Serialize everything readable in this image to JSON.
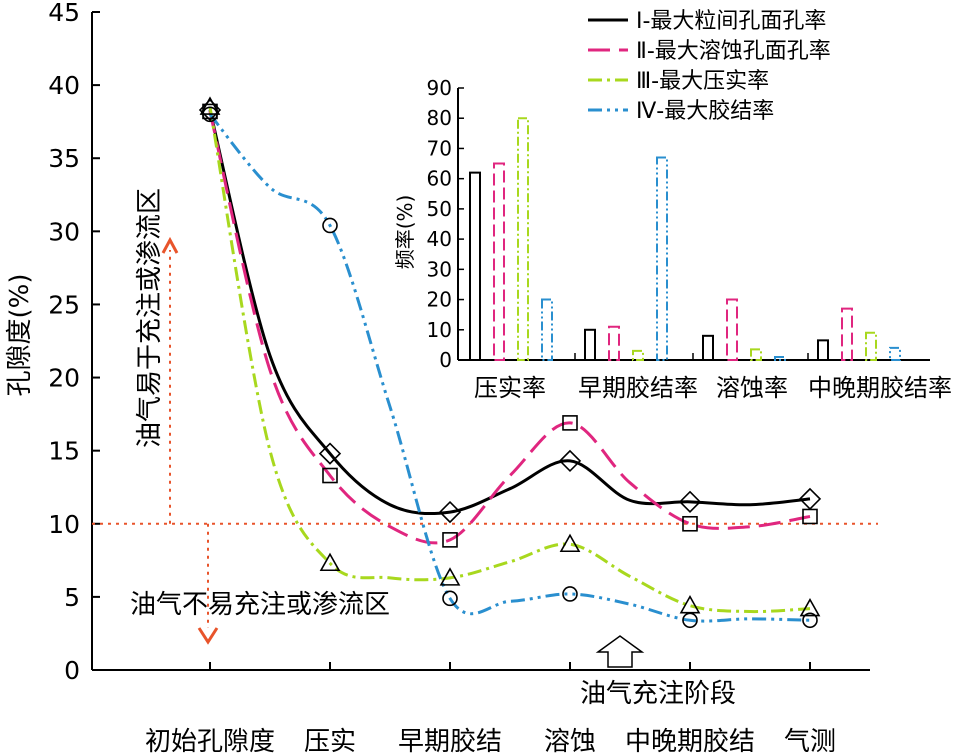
{
  "chart_data": [
    {
      "type": "line",
      "ylabel": "孔隙度(%)",
      "ylim": [
        0,
        45
      ],
      "yticks": [
        0,
        5,
        10,
        15,
        20,
        25,
        30,
        35,
        40,
        45
      ],
      "categories": [
        "初始孔隙度",
        "压实",
        "早期胶结",
        "溶蚀",
        "中晚期胶结",
        "气测"
      ],
      "series": [
        {
          "name": "Ⅰ-最大粒间孔面孔率",
          "color": "#000000",
          "dash": "",
          "marker": "diamond",
          "values": [
            38.3,
            14.8,
            10.8,
            14.3,
            11.5,
            11.7
          ],
          "mid": [
            21.5,
            11.3,
            12.4,
            11.6,
            11.3
          ]
        },
        {
          "name": "Ⅱ-最大溶蚀孔面孔率",
          "color": "#e0267f",
          "dash": "22,9",
          "marker": "square",
          "values": [
            38.2,
            13.3,
            8.9,
            16.9,
            10.0,
            10.5
          ],
          "mid": [
            20.5,
            9.8,
            13.3,
            12.8,
            9.8
          ]
        },
        {
          "name": "Ⅲ-最大压实率",
          "color": "#a8d81e",
          "dash": "14,5,3,5",
          "marker": "triangle",
          "values": [
            38.5,
            7.3,
            6.3,
            8.6,
            4.4,
            4.2
          ],
          "mid": [
            15.0,
            6.3,
            7.4,
            6.4,
            4.0
          ]
        },
        {
          "name": "Ⅳ-最大胶结率",
          "color": "#2a8fcf",
          "dash": "14,5,3,5,3,5",
          "marker": "circle",
          "values": [
            38.0,
            30.4,
            4.9,
            5.2,
            3.4,
            3.4
          ],
          "mid": [
            33.0,
            18.0,
            4.7,
            4.5,
            3.5
          ]
        }
      ],
      "threshold": {
        "value": 10,
        "color": "#e8542b"
      },
      "annotations": {
        "upper": "油气易于充注或渗流区",
        "lower": "油气不易充注或渗流区",
        "stage": "油气充注阶段"
      }
    },
    {
      "type": "bar",
      "ylabel": "频率(%)",
      "ylim": [
        0,
        90
      ],
      "yticks": [
        0,
        10,
        20,
        30,
        40,
        50,
        60,
        70,
        80,
        90
      ],
      "categories": [
        "压实率",
        "早期胶结率",
        "溶蚀率",
        "中晚期胶结率"
      ],
      "series": [
        {
          "name": "Ⅰ-最大粒间孔面孔率",
          "color": "#000000",
          "dash": "",
          "values": [
            62,
            10,
            8,
            6.5
          ]
        },
        {
          "name": "Ⅱ-最大溶蚀孔面孔率",
          "color": "#e0267f",
          "dash": "12,5",
          "values": [
            65,
            11,
            20,
            17
          ]
        },
        {
          "name": "Ⅲ-最大压实率",
          "color": "#a8d81e",
          "dash": "9,3,2,3",
          "values": [
            80,
            3,
            3.5,
            9
          ]
        },
        {
          "name": "Ⅳ-最大胶结率",
          "color": "#2a8fcf",
          "dash": "9,3,2,3,2,3",
          "values": [
            20,
            67,
            1,
            4
          ]
        }
      ]
    }
  ]
}
